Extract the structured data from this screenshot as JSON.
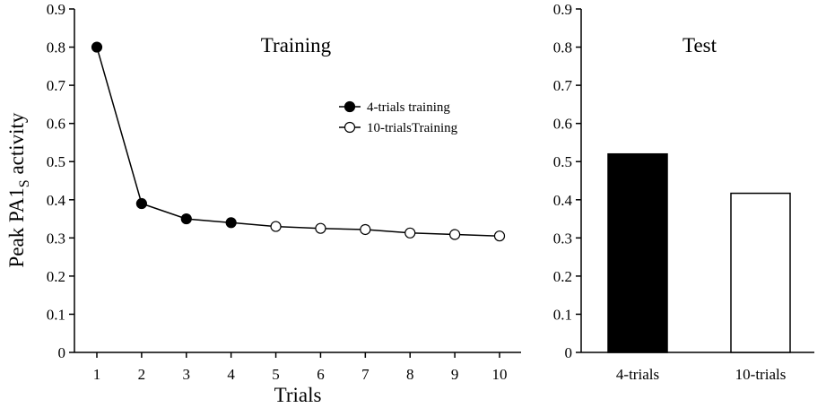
{
  "chart_data": [
    {
      "type": "line",
      "title": "Training",
      "xlabel": "Trials",
      "ylabel": "Peak PA1",
      "ylabel_subscript": "S",
      "ylabel_suffix": " activity",
      "ylim": [
        0,
        0.9
      ],
      "yticks": [
        "0",
        "0.1",
        "0.2",
        "0.3",
        "0.4",
        "0.5",
        "0.6",
        "0.7",
        "0.8",
        "0.9"
      ],
      "xlim": [
        1,
        10
      ],
      "xticks": [
        "1",
        "2",
        "3",
        "4",
        "5",
        "6",
        "7",
        "8",
        "9",
        "10"
      ],
      "grid": false,
      "legend_position": "top-right",
      "x": [
        1,
        2,
        3,
        4,
        5,
        6,
        7,
        8,
        9,
        10
      ],
      "values": [
        0.8,
        0.39,
        0.35,
        0.34,
        0.33,
        0.325,
        0.322,
        0.313,
        0.309,
        0.305
      ],
      "series": [
        {
          "name": "4-trials training",
          "marker": "filled",
          "x": [
            1,
            2,
            3,
            4
          ]
        },
        {
          "name": "10-trialsTraining",
          "marker": "open",
          "x": [
            5,
            6,
            7,
            8,
            9,
            10
          ]
        }
      ],
      "colors": {
        "filled": "#000000",
        "open": "#ffffff",
        "line": "#000000"
      }
    },
    {
      "type": "bar",
      "title": "Test",
      "ylim": [
        0,
        0.9
      ],
      "yticks": [
        "0",
        "0.1",
        "0.2",
        "0.3",
        "0.4",
        "0.5",
        "0.6",
        "0.7",
        "0.8",
        "0.9"
      ],
      "categories": [
        "4-trials",
        "10-trials"
      ],
      "values": [
        0.52,
        0.417
      ],
      "colors": [
        "#000000",
        "#ffffff"
      ],
      "grid": false
    }
  ]
}
